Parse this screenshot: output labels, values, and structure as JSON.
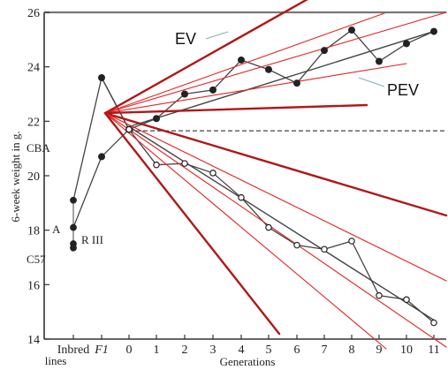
{
  "chart_data": {
    "type": "line",
    "ylabel": "6-week weight in g.",
    "xlabel": "Generations",
    "ylim": [
      14,
      26
    ],
    "yticks": [
      14,
      16,
      18,
      20,
      22,
      24,
      26
    ],
    "xtick_labels": [
      "Inbred",
      "F1",
      "0",
      "1",
      "2",
      "3",
      "4",
      "5",
      "6",
      "7",
      "8",
      "9",
      "10",
      "11"
    ],
    "xlabel_sub": "lines",
    "grid": false,
    "annotations": {
      "ev": "EV",
      "pev": "PEV",
      "strains": [
        "CBA",
        "A",
        "R III",
        "C57"
      ]
    },
    "inbred_points": [
      {
        "name": "CBA",
        "y": 19.1
      },
      {
        "name": "A",
        "y": 18.1
      },
      {
        "name": "R III",
        "y": 17.5
      },
      {
        "name": "C57",
        "y": 17.35
      }
    ],
    "series": [
      {
        "marker": "filled",
        "x": [
          "F1",
          0,
          1,
          2,
          3,
          4,
          5,
          6,
          7,
          8,
          9,
          10,
          11
        ],
        "values": [
          23.6,
          21.7,
          22.1,
          23.0,
          23.15,
          24.25,
          23.9,
          23.4,
          24.6,
          25.35,
          24.2,
          24.85,
          25.3
        ]
      },
      {
        "marker": "filled",
        "x": [
          "F1",
          0
        ],
        "values": [
          20.7,
          21.7
        ]
      },
      {
        "marker": "open",
        "x": [
          0,
          1,
          2,
          3,
          4,
          5,
          6,
          7,
          8,
          9,
          10,
          11
        ],
        "values": [
          21.7,
          20.4,
          20.45,
          20.1,
          19.2,
          18.1,
          17.45,
          17.3,
          17.6,
          15.6,
          15.45,
          14.6
        ]
      }
    ],
    "fit_lines": [
      {
        "from": [
          0,
          21.8
        ],
        "to": [
          11,
          25.3
        ]
      },
      {
        "from": [
          0,
          21.8
        ],
        "to": [
          11,
          14.7
        ]
      }
    ],
    "baseline": {
      "y": 21.65,
      "style": "dashed"
    },
    "overlay_colors": {
      "thick": "#b01818",
      "thin": "#e62020"
    }
  }
}
